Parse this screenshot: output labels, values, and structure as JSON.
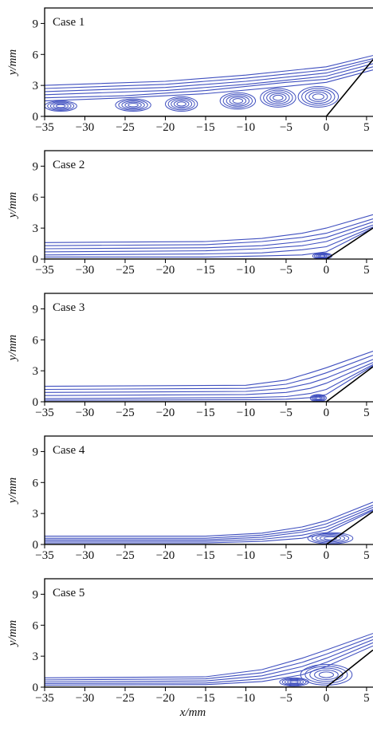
{
  "colors": {
    "streamline": "#3f4fbf",
    "axis": "#000000",
    "wall": "#000000"
  },
  "chart_data": [
    {
      "type": "line",
      "title": "Case 1",
      "xlabel": "",
      "ylabel": "y/mm",
      "xlim": [
        -35,
        5.8
      ],
      "ylim": [
        0,
        10.5
      ],
      "xticks": [
        "−35",
        "−30",
        "−25",
        "−20",
        "−15",
        "−10",
        "−5",
        "0",
        "5"
      ],
      "yticks": [
        "0",
        "3",
        "6",
        "9"
      ],
      "wall": {
        "x": [
          -35,
          0,
          5.8
        ],
        "y": [
          0,
          0,
          5.5
        ]
      },
      "series": [
        {
          "x": [
            -35,
            -20,
            -10,
            0,
            5.8
          ],
          "y": [
            3.0,
            3.4,
            4.0,
            4.8,
            5.9
          ]
        },
        {
          "x": [
            -35,
            -20,
            -10,
            0,
            5.8
          ],
          "y": [
            2.7,
            3.1,
            3.7,
            4.5,
            5.6
          ]
        },
        {
          "x": [
            -35,
            -20,
            -10,
            0,
            5.8
          ],
          "y": [
            2.4,
            2.8,
            3.4,
            4.2,
            5.4
          ]
        },
        {
          "x": [
            -35,
            -20,
            -10,
            0,
            5.8
          ],
          "y": [
            2.1,
            2.5,
            3.1,
            3.9,
            5.1
          ]
        },
        {
          "x": [
            -35,
            -25,
            -15,
            -5,
            0,
            5.8
          ],
          "y": [
            1.8,
            2.0,
            2.5,
            3.3,
            3.6,
            4.8
          ]
        },
        {
          "x": [
            -35,
            -25,
            -15,
            -5,
            0,
            5.8
          ],
          "y": [
            1.5,
            1.8,
            2.2,
            2.9,
            3.3,
            4.5
          ]
        }
      ],
      "vortices": [
        {
          "x": -33.0,
          "y": 1.0,
          "rx": 2.0,
          "ry": 0.5
        },
        {
          "x": -24.0,
          "y": 1.1,
          "rx": 2.2,
          "ry": 0.6
        },
        {
          "x": -18.0,
          "y": 1.2,
          "rx": 2.0,
          "ry": 0.7
        },
        {
          "x": -11.0,
          "y": 1.5,
          "rx": 2.2,
          "ry": 0.8
        },
        {
          "x": -6.0,
          "y": 1.8,
          "rx": 2.2,
          "ry": 0.9
        },
        {
          "x": -1.0,
          "y": 1.9,
          "rx": 2.5,
          "ry": 1.0
        }
      ]
    },
    {
      "type": "line",
      "title": "Case 2",
      "xlabel": "",
      "ylabel": "y/mm",
      "xlim": [
        -35,
        5.8
      ],
      "ylim": [
        0,
        10.5
      ],
      "xticks": [
        "−35",
        "−30",
        "−25",
        "−20",
        "−15",
        "−10",
        "−5",
        "0",
        "5"
      ],
      "yticks": [
        "0",
        "3",
        "6",
        "9"
      ],
      "wall": {
        "x": [
          -35,
          0,
          5.8
        ],
        "y": [
          0,
          0,
          3.0
        ]
      },
      "series": [
        {
          "x": [
            -35,
            -15,
            -8,
            -3,
            0,
            5.8
          ],
          "y": [
            1.6,
            1.7,
            2.0,
            2.5,
            3.0,
            4.3
          ]
        },
        {
          "x": [
            -35,
            -15,
            -8,
            -3,
            0,
            5.8
          ],
          "y": [
            1.3,
            1.4,
            1.7,
            2.1,
            2.5,
            3.9
          ]
        },
        {
          "x": [
            -35,
            -15,
            -8,
            -3,
            0,
            5.8
          ],
          "y": [
            1.0,
            1.1,
            1.3,
            1.7,
            2.1,
            3.6
          ]
        },
        {
          "x": [
            -35,
            -15,
            -8,
            -3,
            0,
            5.8
          ],
          "y": [
            0.7,
            0.8,
            1.0,
            1.3,
            1.7,
            3.3
          ]
        },
        {
          "x": [
            -35,
            -15,
            -8,
            -3,
            0,
            5.8
          ],
          "y": [
            0.4,
            0.5,
            0.6,
            0.9,
            1.2,
            3.1
          ]
        },
        {
          "x": [
            -35,
            -15,
            -8,
            -3,
            0,
            5.8
          ],
          "y": [
            0.2,
            0.2,
            0.3,
            0.4,
            0.7,
            3.0
          ]
        }
      ],
      "vortices": [
        {
          "x": -0.5,
          "y": 0.3,
          "rx": 1.2,
          "ry": 0.3
        }
      ]
    },
    {
      "type": "line",
      "title": "Case 3",
      "xlabel": "",
      "ylabel": "y/mm",
      "xlim": [
        -35,
        5.8
      ],
      "ylim": [
        0,
        10.5
      ],
      "xticks": [
        "−35",
        "−30",
        "−25",
        "−20",
        "−15",
        "−10",
        "−5",
        "0",
        "5"
      ],
      "yticks": [
        "0",
        "3",
        "6",
        "9"
      ],
      "wall": {
        "x": [
          -35,
          0,
          5.8
        ],
        "y": [
          0,
          0,
          3.4
        ]
      },
      "series": [
        {
          "x": [
            -35,
            -10,
            -5,
            -2,
            0,
            5.8
          ],
          "y": [
            1.5,
            1.6,
            2.1,
            2.8,
            3.3,
            4.9
          ]
        },
        {
          "x": [
            -35,
            -10,
            -5,
            -2,
            0,
            5.8
          ],
          "y": [
            1.2,
            1.3,
            1.7,
            2.3,
            2.8,
            4.5
          ]
        },
        {
          "x": [
            -35,
            -10,
            -5,
            -2,
            0,
            5.8
          ],
          "y": [
            0.9,
            1.0,
            1.3,
            1.8,
            2.3,
            4.1
          ]
        },
        {
          "x": [
            -35,
            -10,
            -5,
            -2,
            0,
            5.8
          ],
          "y": [
            0.6,
            0.7,
            0.9,
            1.3,
            1.8,
            3.8
          ]
        },
        {
          "x": [
            -35,
            -10,
            -5,
            -2,
            0,
            5.8
          ],
          "y": [
            0.3,
            0.4,
            0.5,
            0.8,
            1.2,
            3.6
          ]
        },
        {
          "x": [
            -35,
            -10,
            -5,
            -2,
            0,
            5.8
          ],
          "y": [
            0.15,
            0.2,
            0.25,
            0.4,
            0.7,
            3.5
          ]
        }
      ],
      "vortices": [
        {
          "x": -1.0,
          "y": 0.35,
          "rx": 1.0,
          "ry": 0.35
        }
      ]
    },
    {
      "type": "line",
      "title": "Case 4",
      "xlabel": "",
      "ylabel": "y/mm",
      "xlim": [
        -35,
        5.8
      ],
      "ylim": [
        0,
        10.5
      ],
      "xticks": [
        "−35",
        "−30",
        "−25",
        "−20",
        "−15",
        "−10",
        "−5",
        "0",
        "5"
      ],
      "yticks": [
        "0",
        "3",
        "6",
        "9"
      ],
      "wall": {
        "x": [
          -35,
          0,
          5.8
        ],
        "y": [
          0,
          0,
          3.2
        ]
      },
      "series": [
        {
          "x": [
            -35,
            -15,
            -8,
            -3,
            0,
            5.8
          ],
          "y": [
            0.8,
            0.8,
            1.1,
            1.7,
            2.3,
            4.1
          ]
        },
        {
          "x": [
            -35,
            -15,
            -8,
            -3,
            0,
            5.8
          ],
          "y": [
            0.6,
            0.6,
            0.9,
            1.4,
            2.0,
            3.8
          ]
        },
        {
          "x": [
            -35,
            -15,
            -8,
            -3,
            0,
            5.8
          ],
          "y": [
            0.45,
            0.45,
            0.7,
            1.2,
            1.7,
            3.6
          ]
        },
        {
          "x": [
            -35,
            -15,
            -8,
            -3,
            0,
            5.8
          ],
          "y": [
            0.3,
            0.3,
            0.5,
            0.9,
            1.4,
            3.4
          ]
        },
        {
          "x": [
            -35,
            -15,
            -8,
            -3,
            0,
            5.8
          ],
          "y": [
            0.15,
            0.15,
            0.3,
            0.6,
            1.1,
            3.3
          ]
        }
      ],
      "vortices": [
        {
          "x": 0.5,
          "y": 0.6,
          "rx": 2.8,
          "ry": 0.55
        }
      ]
    },
    {
      "type": "line",
      "title": "Case 5",
      "xlabel": "x/mm",
      "ylabel": "y/mm",
      "xlim": [
        -35,
        5.8
      ],
      "ylim": [
        0,
        10.5
      ],
      "xticks": [
        "−35",
        "−30",
        "−25",
        "−20",
        "−15",
        "−10",
        "−5",
        "0",
        "5"
      ],
      "yticks": [
        "0",
        "3",
        "6",
        "9"
      ],
      "wall": {
        "x": [
          -35,
          0,
          5.8
        ],
        "y": [
          0,
          0,
          3.6
        ]
      },
      "series": [
        {
          "x": [
            -35,
            -15,
            -8,
            -3,
            0,
            5.8
          ],
          "y": [
            0.9,
            1.0,
            1.7,
            2.8,
            3.6,
            5.2
          ]
        },
        {
          "x": [
            -35,
            -15,
            -8,
            -3,
            0,
            5.8
          ],
          "y": [
            0.7,
            0.8,
            1.4,
            2.4,
            3.2,
            4.9
          ]
        },
        {
          "x": [
            -35,
            -15,
            -8,
            -3,
            0,
            5.8
          ],
          "y": [
            0.5,
            0.6,
            1.1,
            2.0,
            2.8,
            4.6
          ]
        },
        {
          "x": [
            -35,
            -15,
            -8,
            -3,
            0,
            5.8
          ],
          "y": [
            0.35,
            0.4,
            0.8,
            1.6,
            2.4,
            4.3
          ]
        },
        {
          "x": [
            -35,
            -15,
            -8,
            -3,
            0,
            5.8
          ],
          "y": [
            0.2,
            0.25,
            0.55,
            1.2,
            2.0,
            4.0
          ]
        }
      ],
      "vortices": [
        {
          "x": 0.0,
          "y": 1.2,
          "rx": 3.2,
          "ry": 1.0
        },
        {
          "x": -4.0,
          "y": 0.5,
          "rx": 1.8,
          "ry": 0.4
        }
      ]
    }
  ]
}
